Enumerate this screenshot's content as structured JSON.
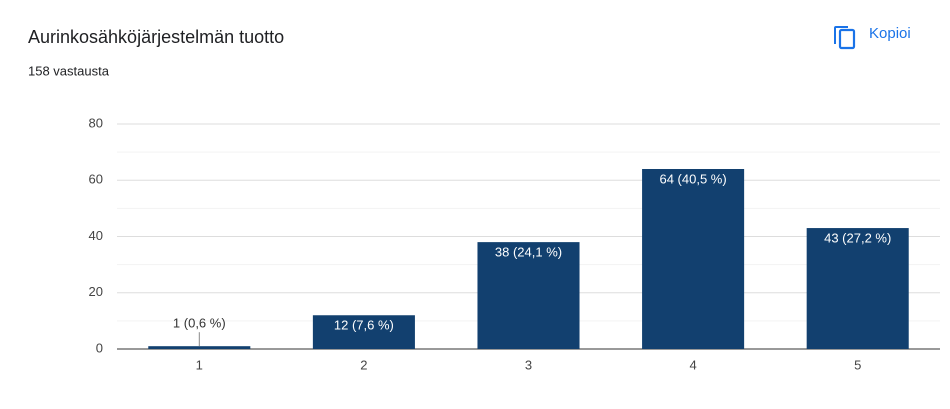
{
  "title": "Aurinkosähköjärjestelmän tuotto",
  "subtitle": "158 vastausta",
  "button": "Kopioi",
  "chart_data": {
    "type": "bar",
    "categories": [
      "1",
      "2",
      "3",
      "4",
      "5"
    ],
    "values": [
      1,
      12,
      38,
      64,
      43
    ],
    "value_labels": [
      "1 (0,6 %)",
      "12 (7,6 %)",
      "38 (24,1 %)",
      "64 (40,5 %)",
      "43 (27,2 %)"
    ],
    "color": "#12406f",
    "ylim": [
      0,
      80
    ],
    "yticks": [
      0,
      20,
      40,
      60,
      80
    ],
    "minor_yticks": [
      10,
      30,
      50,
      70
    ],
    "grid": true
  }
}
